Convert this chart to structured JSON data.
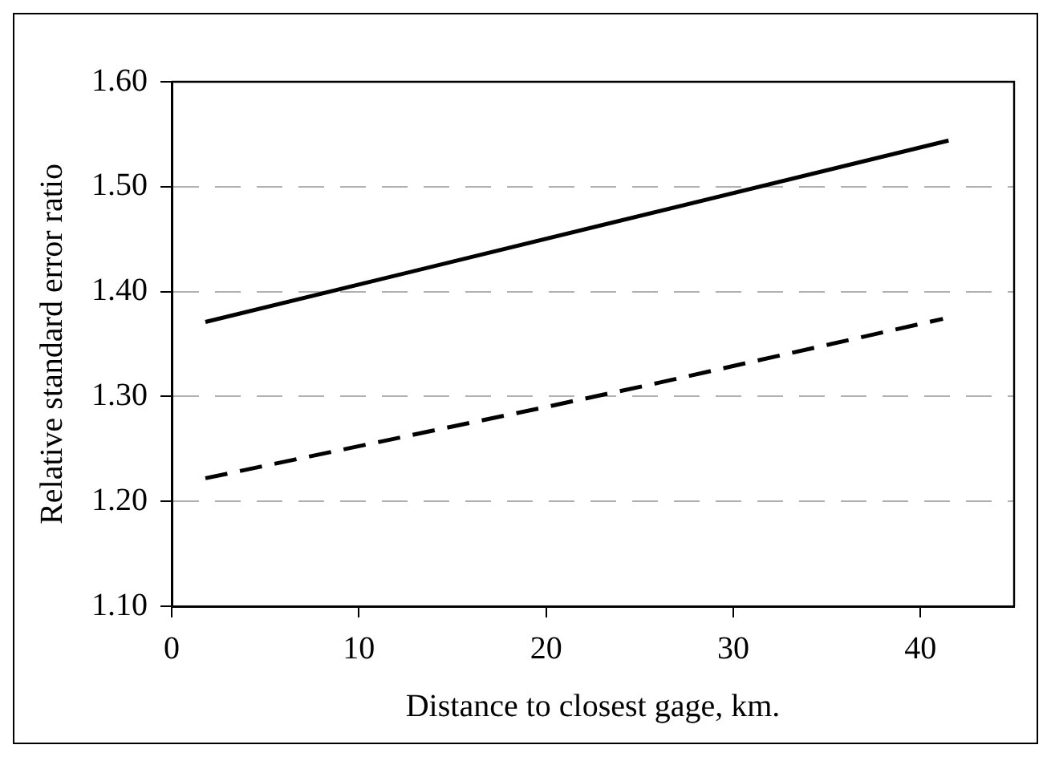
{
  "chart_data": {
    "type": "line",
    "xlabel": "Distance to closest gage, km.",
    "ylabel": "Relative standard error ratio",
    "series": [
      {
        "color": "#000000",
        "line_style": "solid",
        "x": [
          1.8,
          41.5
        ],
        "values": [
          1.371,
          1.544
        ]
      },
      {
        "color": "#000000",
        "line_style": "dashed",
        "x": [
          1.8,
          20,
          26,
          41.2
        ],
        "values": [
          1.222,
          1.29,
          1.313,
          1.374
        ]
      }
    ],
    "xlim": [
      0,
      45
    ],
    "xticks": [
      0,
      10,
      20,
      30,
      40
    ],
    "ylim": [
      1.1,
      1.6
    ],
    "yticks": [
      {
        "value": 1.1,
        "label": "1.10"
      },
      {
        "value": 1.2,
        "label": "1.20"
      },
      {
        "value": 1.3,
        "label": "1.30"
      },
      {
        "value": 1.4,
        "label": "1.40"
      },
      {
        "value": 1.5,
        "label": "1.50"
      },
      {
        "value": 1.6,
        "label": "1.60"
      }
    ],
    "grid": "y",
    "legend": false,
    "marker": "none"
  }
}
